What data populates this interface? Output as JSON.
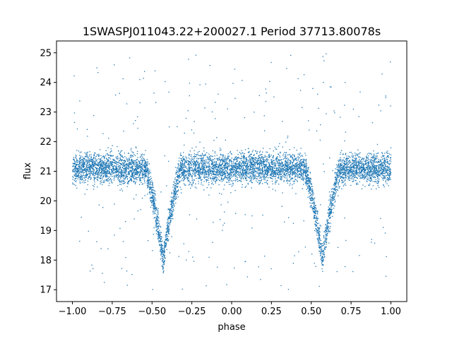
{
  "chart_data": {
    "type": "scatter",
    "title": "1SWASPJ011043.22+200027.1 Period 37713.80078s",
    "xlabel": "phase",
    "ylabel": "flux",
    "xlim": [
      -1.1,
      1.1
    ],
    "ylim": [
      16.6,
      25.4
    ],
    "xticks": [
      -1.0,
      -0.75,
      -0.5,
      -0.25,
      0.0,
      0.25,
      0.5,
      0.75,
      1.0
    ],
    "xtick_labels": [
      "−1.00",
      "−0.75",
      "−0.50",
      "−0.25",
      "0.00",
      "0.25",
      "0.50",
      "0.75",
      "1.00"
    ],
    "yticks": [
      17,
      18,
      19,
      20,
      21,
      22,
      23,
      24,
      25
    ],
    "ytick_labels": [
      "17",
      "18",
      "19",
      "20",
      "21",
      "22",
      "23",
      "24",
      "25"
    ],
    "grid": false,
    "marker_color": "#1f77b4",
    "series": [
      {
        "phase_range": [
          -1.0,
          1.0
        ],
        "baseline_flux": 21.1,
        "scatter_spread": 0.35,
        "eclipses": [
          {
            "phase_center": -0.43,
            "min_flux": 18.0,
            "half_width": 0.11
          },
          {
            "phase_center": 0.57,
            "min_flux": 18.0,
            "half_width": 0.11
          }
        ],
        "outlier_flux_range": [
          17.0,
          25.0
        ]
      }
    ]
  }
}
